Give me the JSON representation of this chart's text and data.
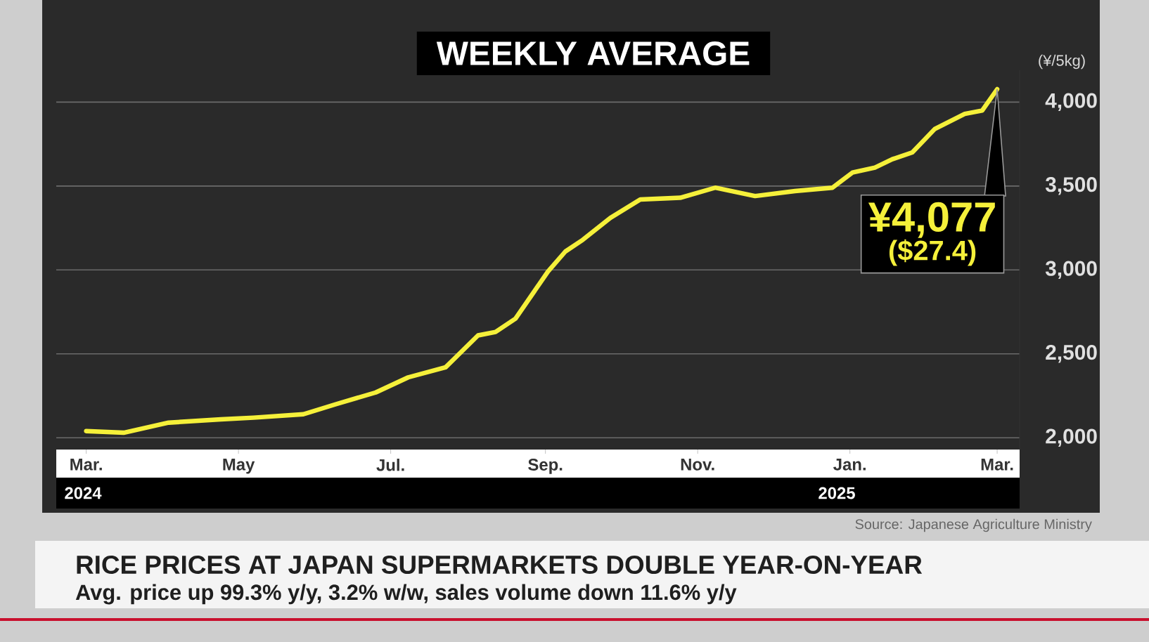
{
  "chart_data": {
    "type": "line",
    "title": "WEEKLY AVERAGE",
    "ylabel": "(¥/5kg)",
    "x": [
      "2024-03-01",
      "2024-03-16",
      "2024-04-03",
      "2024-04-24",
      "2024-05-07",
      "2024-05-27",
      "2024-06-09",
      "2024-06-25",
      "2024-07-08",
      "2024-07-23",
      "2024-08-05",
      "2024-08-12",
      "2024-08-20",
      "2024-09-02",
      "2024-09-09",
      "2024-09-16",
      "2024-09-27",
      "2024-10-09",
      "2024-10-25",
      "2024-11-08",
      "2024-11-24",
      "2024-12-10",
      "2024-12-25",
      "2025-01-02",
      "2025-01-11",
      "2025-01-18",
      "2025-01-26",
      "2025-02-04",
      "2025-02-16",
      "2025-02-23",
      "2025-03-01"
    ],
    "values": [
      2040,
      2030,
      2090,
      2110,
      2120,
      2140,
      2200,
      2270,
      2360,
      2420,
      2610,
      2630,
      2710,
      2990,
      3110,
      3180,
      3310,
      3420,
      3430,
      3490,
      3440,
      3470,
      3490,
      3580,
      3610,
      3660,
      3700,
      3840,
      3930,
      3950,
      4077
    ],
    "color": "#f5f03a",
    "marker": "none",
    "line_style": "solid",
    "grid": "y",
    "xlim": [
      "2024-02-18",
      "2025-03-10"
    ],
    "xticks": [
      {
        "value": "2024-03-01",
        "label": "Mar."
      },
      {
        "value": "2024-05-01",
        "label": "May"
      },
      {
        "value": "2024-07-01",
        "label": "Jul."
      },
      {
        "value": "2024-09-01",
        "label": "Sep."
      },
      {
        "value": "2024-11-01",
        "label": "Nov."
      },
      {
        "value": "2025-01-01",
        "label": "Jan."
      },
      {
        "value": "2025-03-01",
        "label": "Mar."
      }
    ],
    "ylim": [
      1930,
      4190
    ],
    "yticks": [
      {
        "value": 2000,
        "label": "2,000"
      },
      {
        "value": 2500,
        "label": "2,500"
      },
      {
        "value": 3000,
        "label": "3,000"
      },
      {
        "value": 3500,
        "label": "3,500"
      },
      {
        "value": 4000,
        "label": "4,000"
      }
    ],
    "annotations": [
      {
        "text": "¥4,077",
        "x": "2025-03-01",
        "y": 4077
      },
      "($27.4)",
      "2024",
      "2025",
      "Source: Japanese Agriculture Ministry",
      "RICE PRICES AT JAPAN SUPERMARKETS DOUBLE YEAR-ON-YEAR",
      "Avg. price up 99.3% y/y, 3.2% w/w, sales volume down 11.6% y/y"
    ]
  }
}
